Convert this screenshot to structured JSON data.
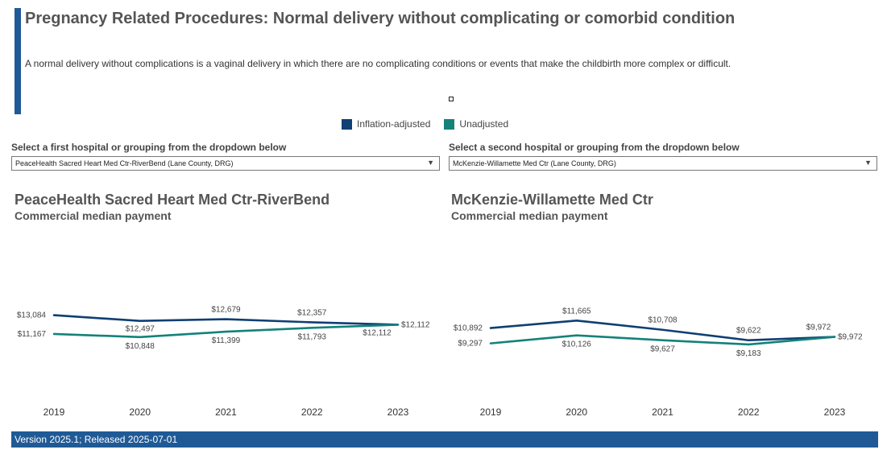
{
  "header": {
    "title": "Pregnancy Related Procedures: Normal delivery without complicating or comorbid condition",
    "description": "A normal delivery without complications is a vaginal delivery in which there are no complicating conditions or events that make the childbirth more complex or difficult."
  },
  "legend": {
    "items": [
      {
        "label": "Inflation-adjusted",
        "color": "#0f3f73"
      },
      {
        "label": "Unadjusted",
        "color": "#13827a"
      }
    ]
  },
  "selectors": {
    "first": {
      "label": "Select a first hospital or grouping from the dropdown below",
      "value": "PeaceHealth Sacred Heart Med Ctr-RiverBend (Lane County, DRG)"
    },
    "second": {
      "label": "Select a second hospital or grouping from the dropdown below",
      "value": "McKenzie-Willamette Med Ctr (Lane County, DRG)"
    }
  },
  "chart_data": [
    {
      "type": "line",
      "title": "PeaceHealth Sacred Heart Med Ctr-RiverBend",
      "subtitle": "Commercial median payment",
      "x": [
        "2019",
        "2020",
        "2021",
        "2022",
        "2023"
      ],
      "series": [
        {
          "name": "Inflation-adjusted",
          "color": "#0f3f73",
          "values": [
            13084,
            12497,
            12679,
            12357,
            12112
          ],
          "labels": [
            "$13,084",
            "$12,497",
            "$12,679",
            "$12,357",
            "$12,112"
          ]
        },
        {
          "name": "Unadjusted",
          "color": "#13827a",
          "values": [
            11167,
            10848,
            11399,
            11793,
            12112
          ],
          "labels": [
            "$11,167",
            "$10,848",
            "$11,399",
            "$11,793",
            "$12,112"
          ]
        }
      ],
      "ylim": [
        5000,
        16500
      ]
    },
    {
      "type": "line",
      "title": "McKenzie-Willamette Med Ctr",
      "subtitle": "Commercial median payment",
      "x": [
        "2019",
        "2020",
        "2021",
        "2022",
        "2023"
      ],
      "series": [
        {
          "name": "Inflation-adjusted",
          "color": "#0f3f73",
          "values": [
            10892,
            11665,
            10708,
            9622,
            9972
          ],
          "labels": [
            "$10,892",
            "$11,665",
            "$10,708",
            "$9,622",
            "$9,972"
          ]
        },
        {
          "name": "Unadjusted",
          "color": "#13827a",
          "values": [
            9297,
            10126,
            9627,
            9183,
            9972
          ],
          "labels": [
            "$9,297",
            "$10,126",
            "$9,627",
            "$9,183",
            "$9,972"
          ]
        }
      ],
      "ylim": [
        4000,
        15700
      ]
    }
  ],
  "footer": {
    "text": "Version 2025.1; Released 2025-07-01"
  }
}
